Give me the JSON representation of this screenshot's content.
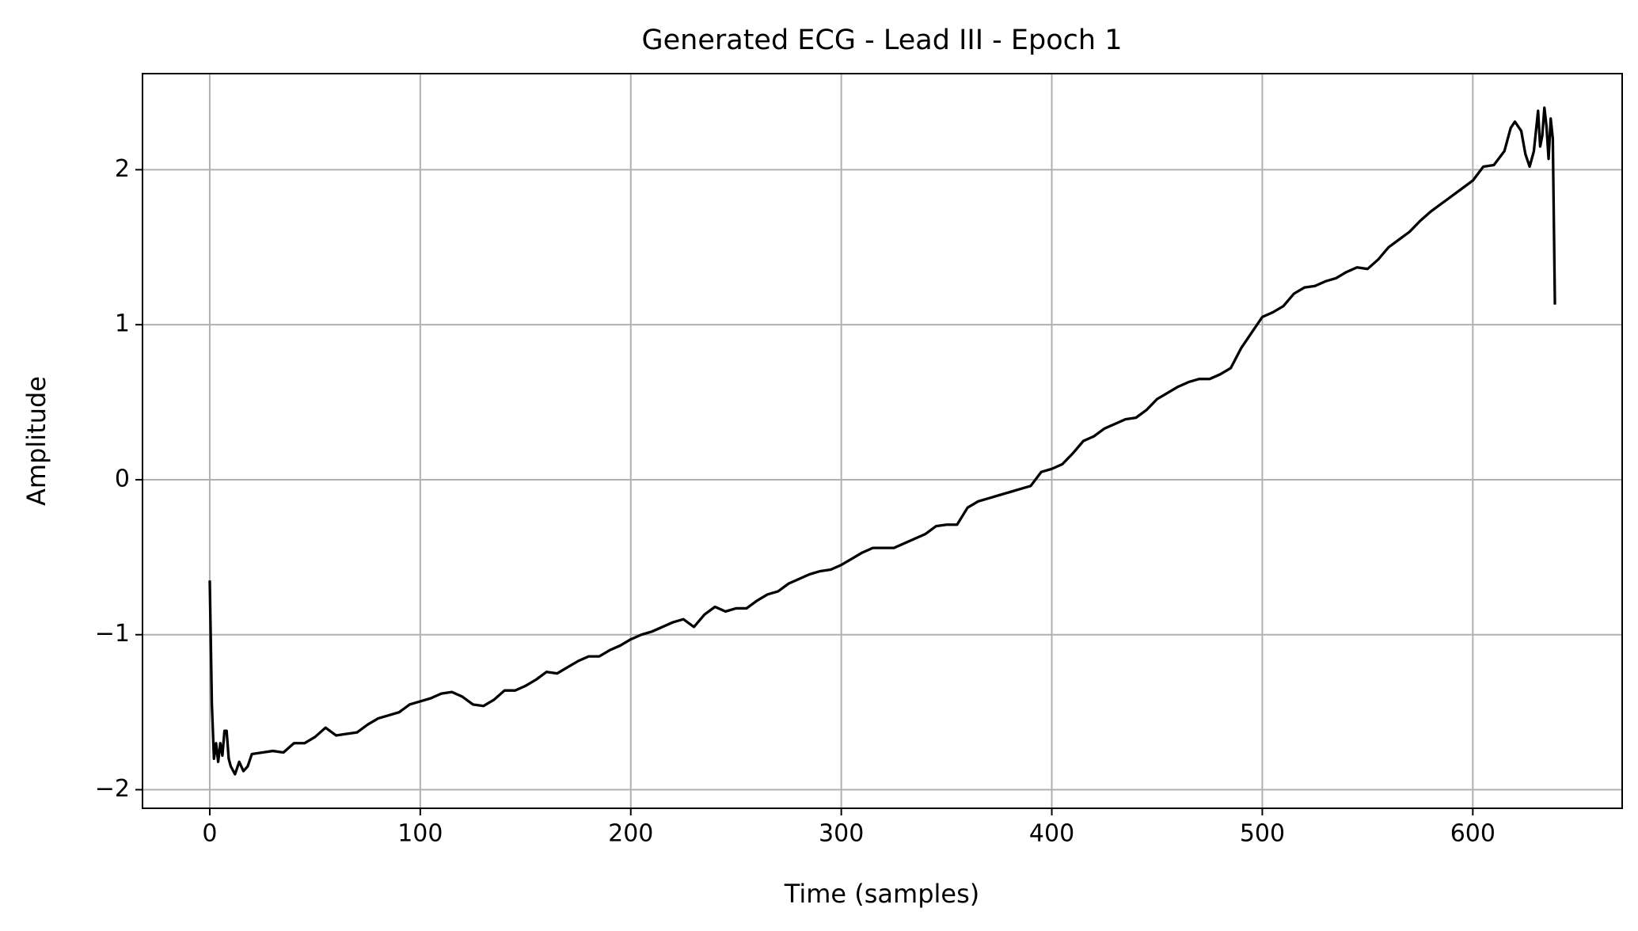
{
  "chart_data": {
    "type": "line",
    "title": "Generated ECG - Lead III - Epoch 1",
    "x_label": "Time (samples)",
    "y_label": "Amplitude",
    "grid": true,
    "xlim": [
      -31.95,
      670.95
    ],
    "ylim": [
      -2.12,
      2.62
    ],
    "xticks": [
      0,
      100,
      200,
      300,
      400,
      500,
      600
    ],
    "yticks": [
      {
        "value": -2,
        "label": "−2"
      },
      {
        "value": -1,
        "label": "−1"
      },
      0,
      1,
      2
    ],
    "x": [
      0,
      1,
      2,
      3,
      4,
      5,
      6,
      7,
      8,
      9,
      10,
      12,
      14,
      16,
      18,
      20,
      25,
      30,
      35,
      40,
      45,
      50,
      55,
      60,
      65,
      70,
      75,
      80,
      85,
      90,
      95,
      100,
      105,
      110,
      115,
      120,
      125,
      130,
      135,
      140,
      145,
      150,
      155,
      160,
      165,
      170,
      175,
      180,
      185,
      190,
      195,
      200,
      205,
      210,
      215,
      220,
      225,
      230,
      235,
      240,
      245,
      250,
      255,
      260,
      265,
      270,
      275,
      280,
      285,
      290,
      295,
      300,
      305,
      310,
      315,
      320,
      325,
      330,
      335,
      340,
      345,
      350,
      355,
      360,
      365,
      370,
      375,
      380,
      385,
      390,
      395,
      400,
      405,
      410,
      415,
      420,
      425,
      430,
      435,
      440,
      445,
      450,
      455,
      460,
      465,
      470,
      475,
      480,
      485,
      490,
      495,
      500,
      505,
      510,
      515,
      520,
      525,
      530,
      535,
      540,
      545,
      550,
      555,
      560,
      565,
      570,
      575,
      580,
      585,
      590,
      595,
      600,
      605,
      610,
      615,
      618,
      620,
      623,
      625,
      627,
      629,
      631,
      632,
      633,
      634,
      635,
      636,
      637,
      638,
      639
    ],
    "series": [
      {
        "color": "#000000",
        "values": [
          -0.65,
          -1.45,
          -1.8,
          -1.7,
          -1.82,
          -1.7,
          -1.78,
          -1.62,
          -1.62,
          -1.8,
          -1.85,
          -1.9,
          -1.82,
          -1.88,
          -1.85,
          -1.77,
          -1.76,
          -1.75,
          -1.76,
          -1.7,
          -1.7,
          -1.66,
          -1.6,
          -1.65,
          -1.64,
          -1.63,
          -1.58,
          -1.54,
          -1.52,
          -1.5,
          -1.45,
          -1.43,
          -1.41,
          -1.38,
          -1.37,
          -1.4,
          -1.45,
          -1.46,
          -1.42,
          -1.36,
          -1.36,
          -1.33,
          -1.29,
          -1.24,
          -1.25,
          -1.21,
          -1.17,
          -1.14,
          -1.14,
          -1.1,
          -1.07,
          -1.03,
          -1.0,
          -0.98,
          -0.95,
          -0.92,
          -0.9,
          -0.95,
          -0.87,
          -0.82,
          -0.85,
          -0.83,
          -0.83,
          -0.78,
          -0.74,
          -0.72,
          -0.67,
          -0.64,
          -0.61,
          -0.59,
          -0.58,
          -0.55,
          -0.51,
          -0.47,
          -0.44,
          -0.44,
          -0.44,
          -0.41,
          -0.38,
          -0.35,
          -0.3,
          -0.29,
          -0.29,
          -0.18,
          -0.14,
          -0.12,
          -0.1,
          -0.08,
          -0.06,
          -0.04,
          0.05,
          0.07,
          0.1,
          0.17,
          0.25,
          0.28,
          0.33,
          0.36,
          0.39,
          0.4,
          0.45,
          0.52,
          0.56,
          0.6,
          0.63,
          0.65,
          0.65,
          0.68,
          0.72,
          0.85,
          0.95,
          1.05,
          1.08,
          1.12,
          1.2,
          1.24,
          1.25,
          1.28,
          1.3,
          1.34,
          1.37,
          1.36,
          1.42,
          1.5,
          1.55,
          1.6,
          1.67,
          1.73,
          1.78,
          1.83,
          1.88,
          1.93,
          2.02,
          2.03,
          2.12,
          2.27,
          2.31,
          2.25,
          2.1,
          2.02,
          2.12,
          2.38,
          2.15,
          2.22,
          2.4,
          2.28,
          2.07,
          2.33,
          2.2,
          1.13
        ]
      }
    ]
  }
}
